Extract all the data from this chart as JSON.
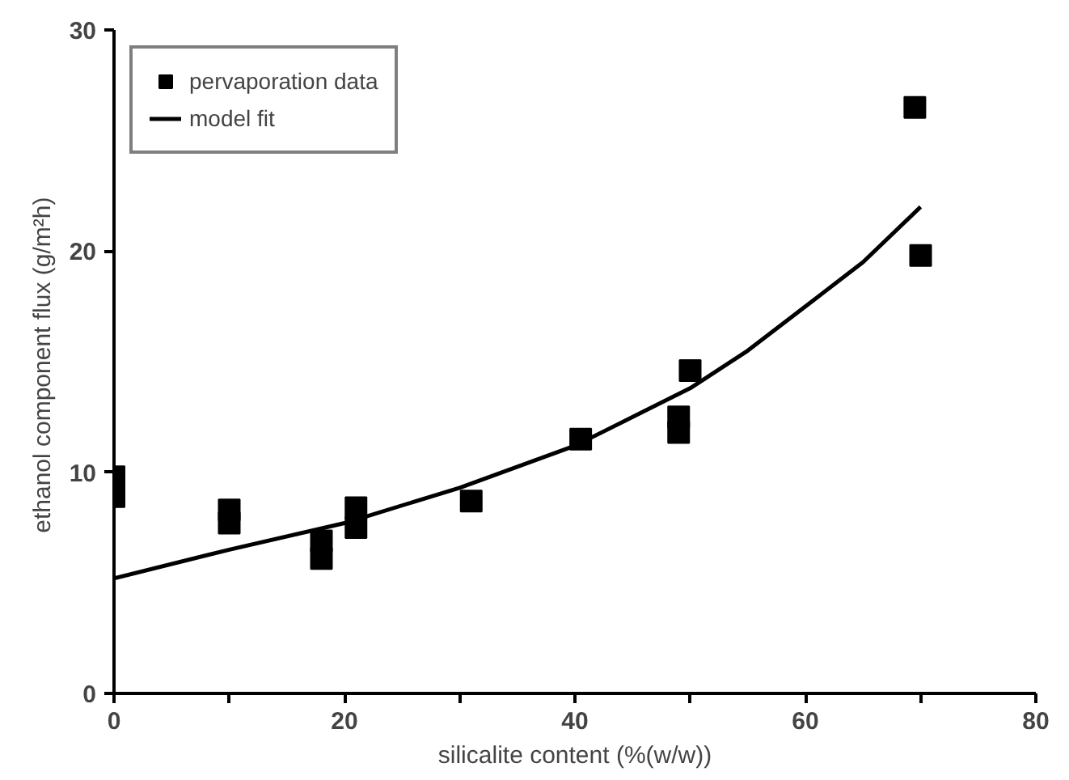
{
  "chart_data": {
    "type": "scatter",
    "xlabel": "silicalite content (%(w/w))",
    "ylabel": "ethanol component flux  (g/m²h)",
    "xlim": [
      0,
      80
    ],
    "ylim": [
      0,
      30
    ],
    "xticks": [
      0,
      {
        "value": 10,
        "label": null
      },
      20,
      {
        "value": 30,
        "label": null
      },
      40,
      {
        "value": 50,
        "label": null
      },
      60,
      {
        "value": 70,
        "label": null
      },
      80
    ],
    "yticks": [
      0,
      10,
      20,
      30
    ],
    "grid": false,
    "legend": "top left",
    "series": [
      {
        "name": "pervaporation data",
        "marker": "square",
        "color": "#000000",
        "x": [
          0,
          0,
          10,
          10,
          18,
          18,
          21,
          21,
          31,
          40.5,
          49,
          49,
          50,
          69.5,
          70
        ],
        "values": [
          9.8,
          8.9,
          8.3,
          7.7,
          6.9,
          6.1,
          8.4,
          7.5,
          8.7,
          11.5,
          12.5,
          11.8,
          14.6,
          26.5,
          19.8
        ]
      },
      {
        "name": "model fit",
        "type": "line",
        "marker": "none",
        "color": "#000000",
        "x": [
          0,
          10,
          20,
          30,
          40,
          50,
          55,
          60,
          65,
          70
        ],
        "values": [
          5.2,
          6.5,
          7.7,
          9.3,
          11.2,
          13.8,
          15.5,
          17.5,
          19.5,
          22
        ]
      }
    ]
  }
}
